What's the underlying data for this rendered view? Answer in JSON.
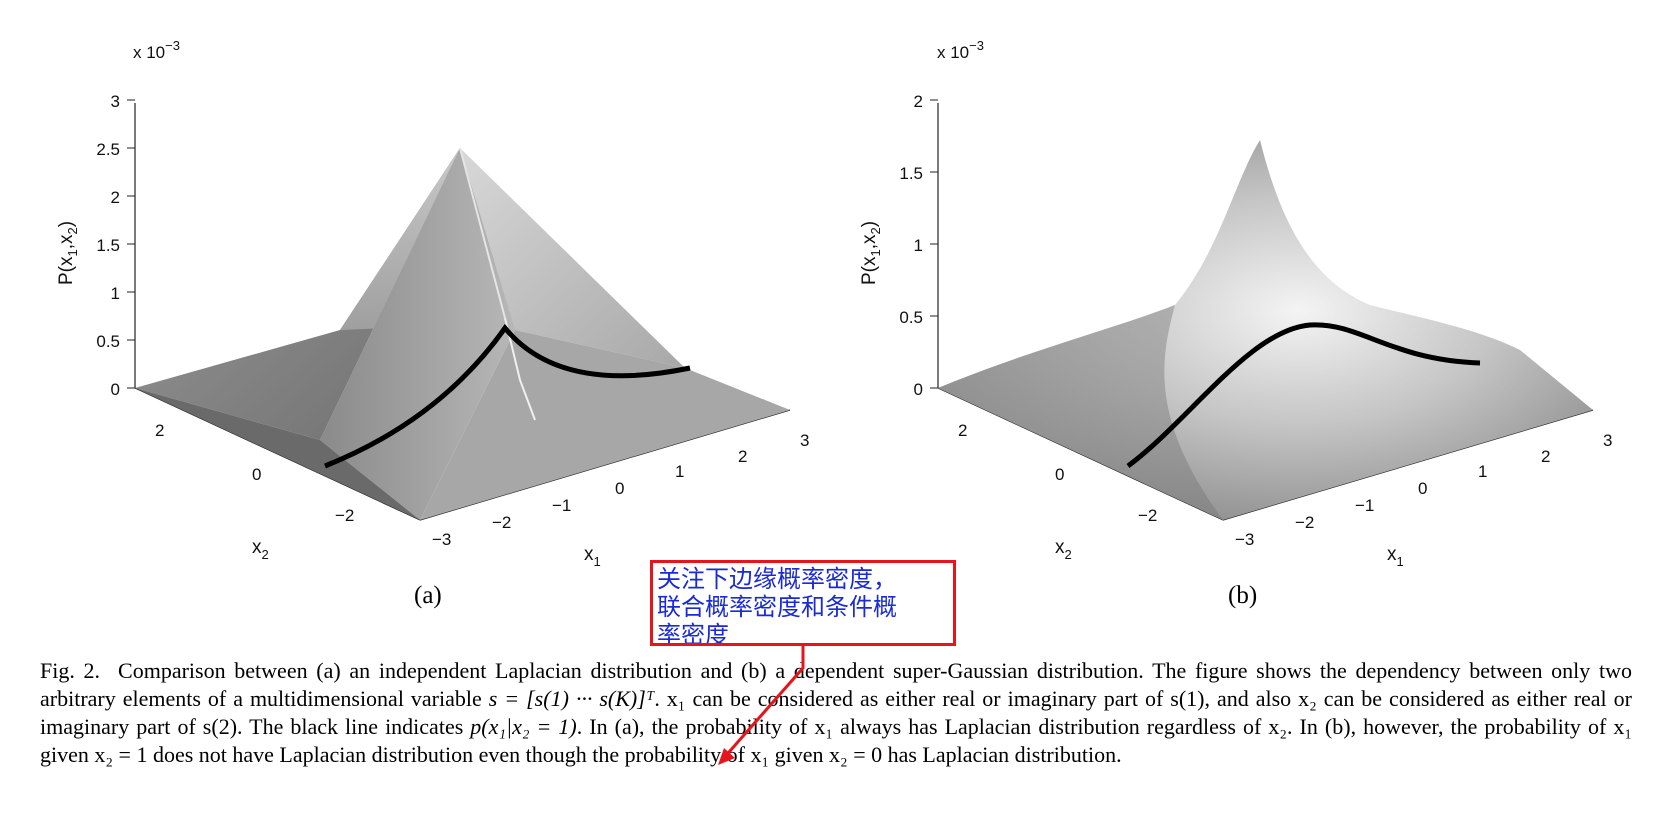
{
  "panels": [
    {
      "id": "a",
      "label": "(a)",
      "scale": "x 10",
      "scale_exp": "−3",
      "z_axis_label": "P(x",
      "z_ticks": [
        "0",
        "0.5",
        "1",
        "1.5",
        "2",
        "2.5",
        "3"
      ],
      "x1_ticks": [
        "−3",
        "−2",
        "−1",
        "0",
        "1",
        "2",
        "3"
      ],
      "x2_ticks": [
        "−2",
        "0",
        "2"
      ],
      "x1_label": "x",
      "x2_label": "x"
    },
    {
      "id": "b",
      "label": "(b)",
      "scale": "x 10",
      "scale_exp": "−3",
      "z_axis_label": "P(x",
      "z_ticks": [
        "0",
        "0.5",
        "1",
        "1.5",
        "2"
      ],
      "x1_ticks": [
        "−3",
        "−2",
        "−1",
        "0",
        "1",
        "2",
        "3"
      ],
      "x2_ticks": [
        "−2",
        "0",
        "2"
      ],
      "x1_label": "x",
      "x2_label": "x"
    }
  ],
  "annotation": {
    "line1": "关注下边缘概率密度，",
    "line2": "联合概率密度和条件概",
    "line3": "率密度",
    "color": "#1a2bd6",
    "border_color": "#e8141c"
  },
  "caption": {
    "fig_label": "Fig. 2.",
    "part1": "Comparison between (a) an independent Laplacian distribution and (b) a dependent super-Gaussian distribution. The figure shows the dependency between only two arbitrary elements of a multidimensional variable ",
    "vec": "s = [s(1) ··· s(K)]ᵀ",
    "part2": ". x₁ can be considered as either real or imaginary part of s(1), and also x₂ can be considered as either real or imaginary part of s(2). The black line indicates ",
    "cond": "p(x₁|x₂ = 1)",
    "part3": ". In (a), the probability of x₁ always has Laplacian distribution regardless of x₂. In (b), however, the probability of x₁ given x₂ = 1 does not have Laplacian distribution even though the probability of x₁ given x₂ = 0 has Laplacian distribution."
  }
}
